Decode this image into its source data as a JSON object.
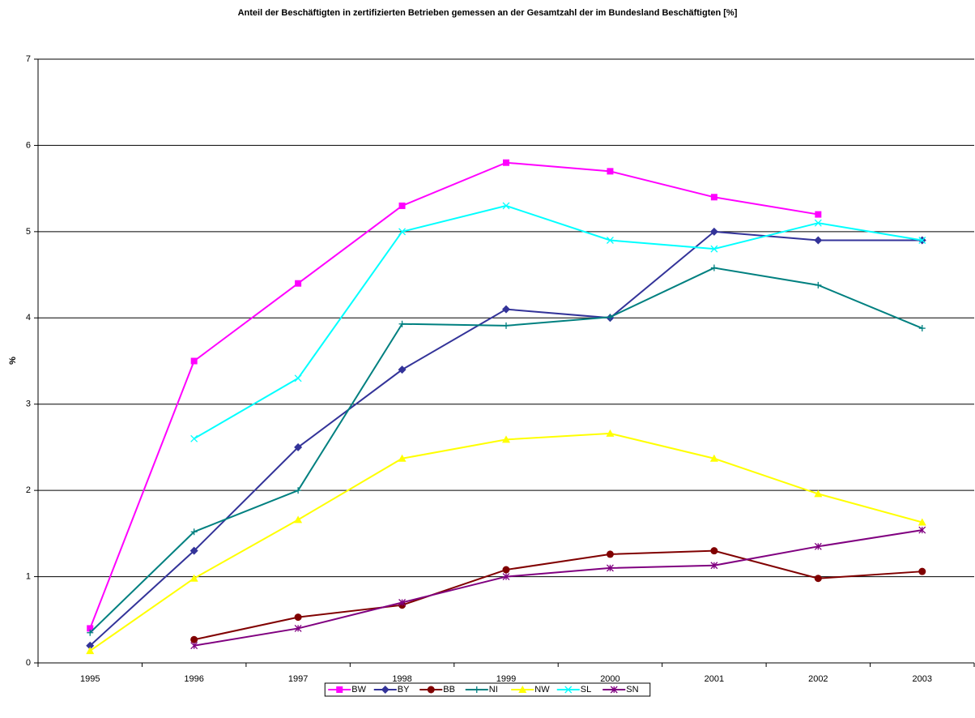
{
  "chart_data": {
    "type": "line",
    "title": "Anteil der Beschäftigten in zertifizierten Betrieben gemessen an der Gesamtzahl der im Bundesland Beschäftigten [%]",
    "y_label": "%",
    "categories": [
      "1995",
      "1996",
      "1997",
      "1998",
      "1999",
      "2000",
      "2001",
      "2002",
      "2003"
    ],
    "series": [
      {
        "name": "BW",
        "color": "#ff00ff",
        "marker": "square",
        "values": [
          0.4,
          3.5,
          4.4,
          5.3,
          5.8,
          5.7,
          5.4,
          5.2,
          null
        ]
      },
      {
        "name": "BY",
        "color": "#333399",
        "marker": "diamond",
        "values": [
          0.2,
          1.3,
          2.5,
          3.4,
          4.1,
          4.0,
          5.0,
          4.9,
          4.9
        ]
      },
      {
        "name": "BB",
        "color": "#800000",
        "marker": "circle",
        "values": [
          null,
          0.27,
          0.53,
          0.67,
          1.08,
          1.26,
          1.3,
          0.98,
          1.06
        ]
      },
      {
        "name": "NI",
        "color": "#008080",
        "marker": "plus",
        "values": [
          0.35,
          1.52,
          2.0,
          3.93,
          3.91,
          4.01,
          4.58,
          4.38,
          3.88
        ]
      },
      {
        "name": "NW",
        "color": "#ffff00",
        "marker": "triangle",
        "values": [
          0.14,
          0.98,
          1.66,
          2.37,
          2.59,
          2.66,
          2.37,
          1.96,
          1.63
        ]
      },
      {
        "name": "SL",
        "color": "#00ffff",
        "marker": "x",
        "values": [
          null,
          2.6,
          3.3,
          5.0,
          5.3,
          4.9,
          4.8,
          5.1,
          4.9
        ]
      },
      {
        "name": "SN",
        "color": "#800080",
        "marker": "asterisk",
        "values": [
          null,
          0.2,
          0.4,
          0.7,
          1.0,
          1.1,
          1.13,
          1.35,
          1.54
        ]
      }
    ],
    "ylim": [
      0,
      7
    ],
    "yticks": [
      0,
      1,
      2,
      3,
      4,
      5,
      6,
      7
    ],
    "grid": true,
    "legend": "bottom"
  }
}
